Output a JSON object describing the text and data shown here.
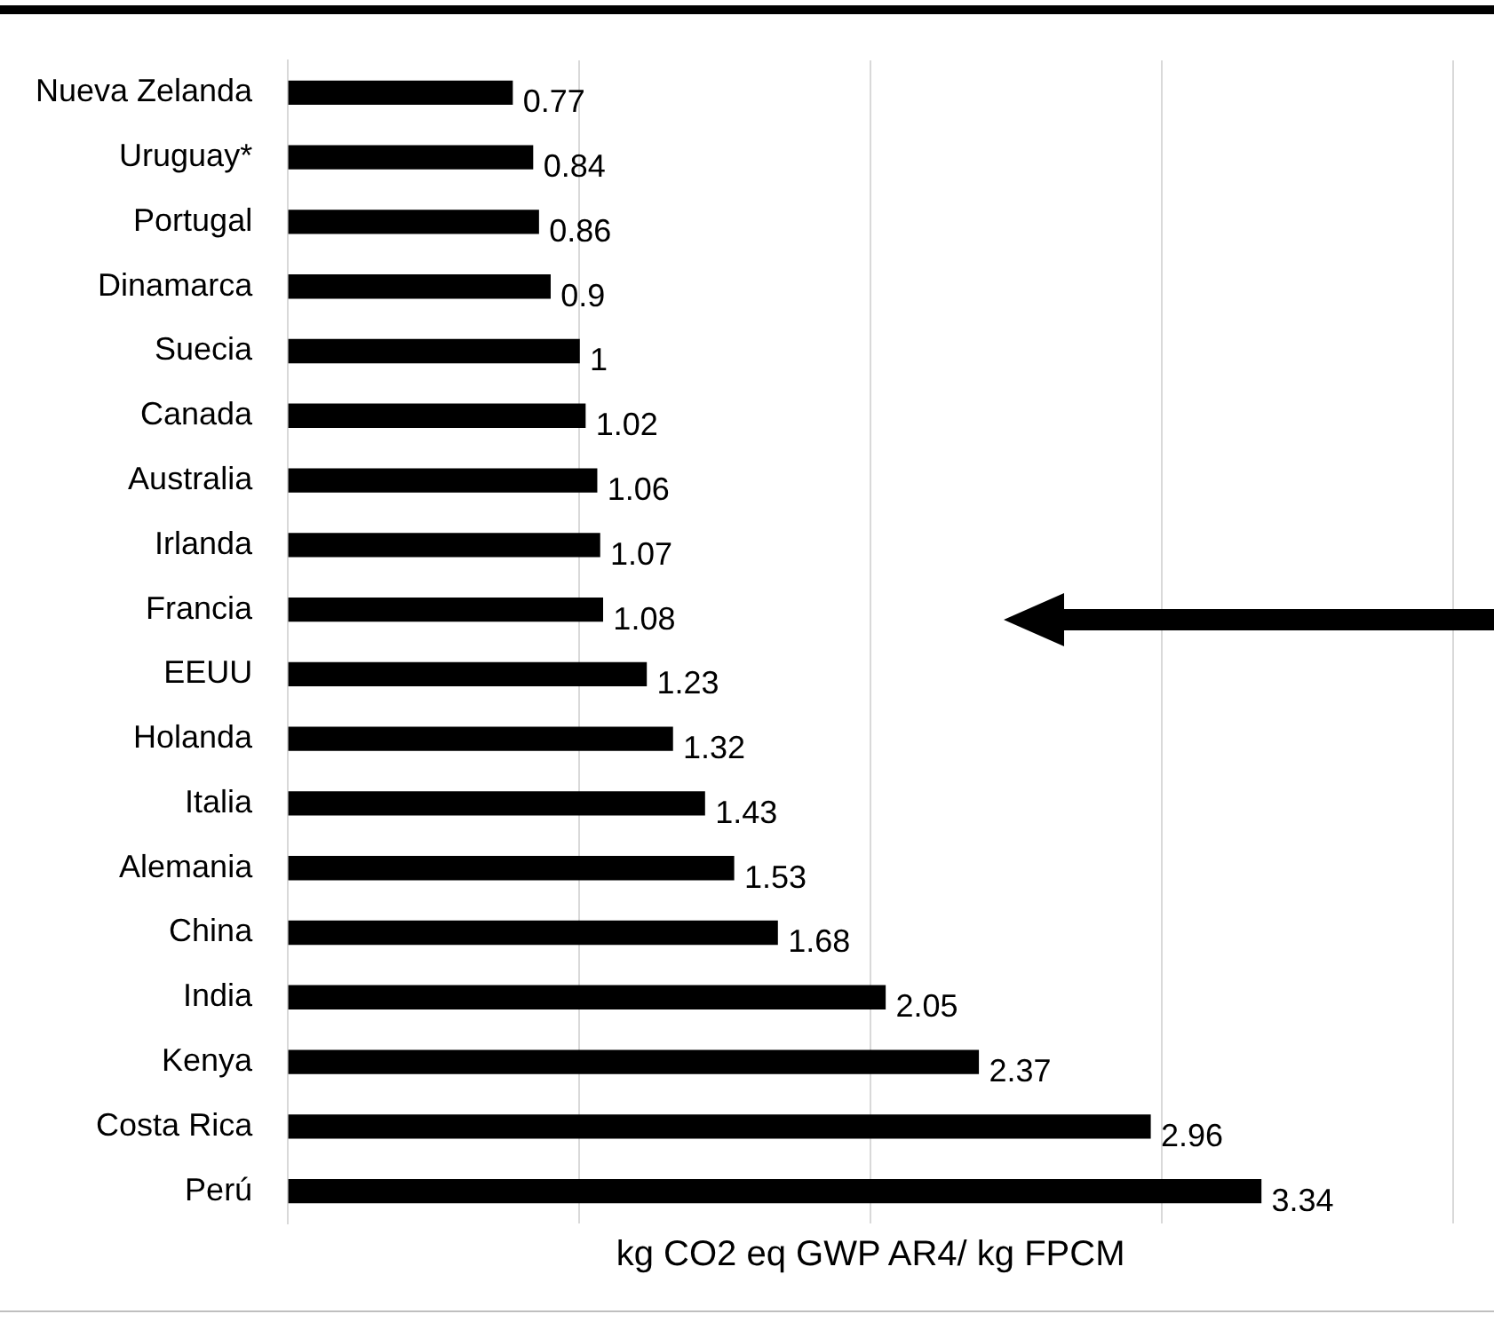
{
  "chart_data": {
    "type": "bar",
    "orientation": "horizontal",
    "xlabel": "kg CO2 eq GWP AR4/ kg FPCM",
    "categories": [
      "Nueva Zelanda",
      "Uruguay*",
      "Portugal",
      "Dinamarca",
      "Suecia",
      "Canada",
      "Australia",
      "Irlanda",
      "Francia",
      "EEUU",
      "Holanda",
      "Italia",
      "Alemania",
      "China",
      "India",
      "Kenya",
      "Costa Rica",
      "Perú"
    ],
    "values": [
      0.77,
      0.84,
      0.86,
      0.9,
      1,
      1.02,
      1.06,
      1.07,
      1.08,
      1.23,
      1.32,
      1.43,
      1.53,
      1.68,
      2.05,
      2.37,
      2.96,
      3.34
    ],
    "color": "#000000",
    "data_labels": true,
    "xlim": [
      0,
      4
    ],
    "xticks": [
      {
        "value": 0,
        "label": null
      },
      {
        "value": 1,
        "label": null
      },
      {
        "value": 2,
        "label": null
      },
      {
        "value": 3,
        "label": null
      },
      {
        "value": 4,
        "label": null
      }
    ],
    "grid": "x",
    "tick_labels": "y",
    "legend": false
  }
}
